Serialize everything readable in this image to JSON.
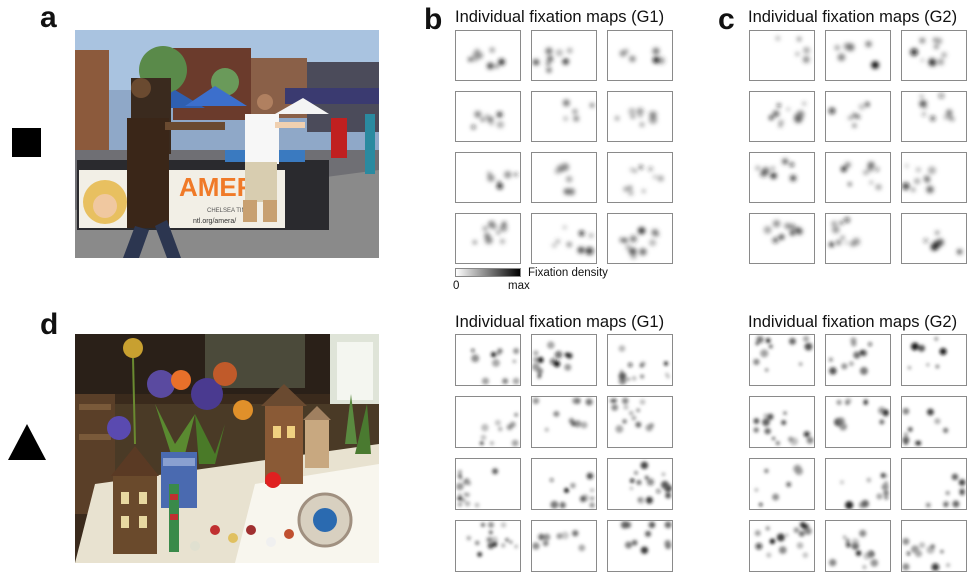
{
  "panels": {
    "a": "a",
    "b": "b",
    "c": "c",
    "d": "d"
  },
  "titles": {
    "b": "Individual fixation maps (G1)",
    "c": "Individual fixation maps (G2)",
    "d_g1": "Individual fixation maps (G1)",
    "d_g2": "Individual fixation maps (G2)"
  },
  "legend": {
    "label": "Fixation density",
    "min": "0",
    "max": "max"
  },
  "symbols": {
    "top": "square",
    "bottom": "triangle"
  },
  "photos": {
    "top_banner_text": "AMERA",
    "top_small_text": "CHELSEA TIMES",
    "top_url_text": "ntl.org/amera/"
  }
}
